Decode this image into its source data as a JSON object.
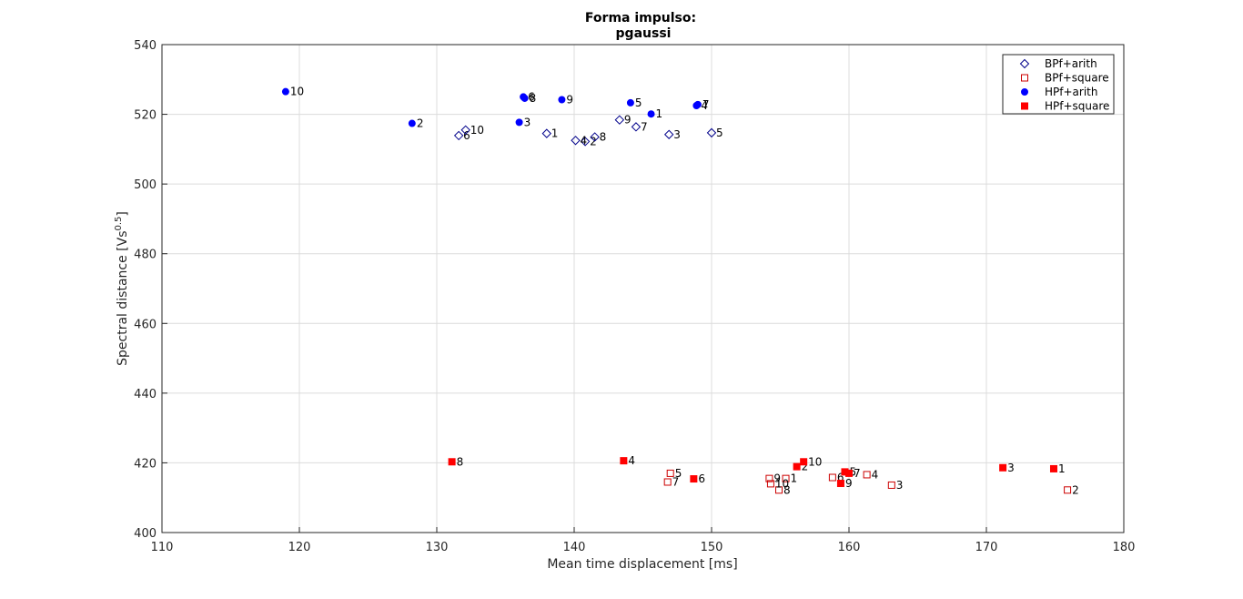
{
  "chart_data": {
    "type": "scatter",
    "title": [
      "Forma impulso:",
      "pgaussi"
    ],
    "xlabel": "Mean time displacement [ms]",
    "ylabel": "Spectral distance [Vs",
    "ylabel_sup": "0.5",
    "ylabel_end": "]",
    "xlim": [
      110,
      180
    ],
    "ylim": [
      400,
      540
    ],
    "xticks": [
      110,
      120,
      130,
      140,
      150,
      160,
      170,
      180
    ],
    "yticks": [
      400,
      420,
      440,
      460,
      480,
      500,
      520,
      540
    ],
    "grid": true,
    "legend_position": "top-right",
    "series": [
      {
        "name": "BPf+arith",
        "marker": "diamond",
        "color": "#00008B",
        "filled": false,
        "points": [
          {
            "x": 138.0,
            "y": 514.5,
            "label": "1"
          },
          {
            "x": 140.8,
            "y": 512.2,
            "label": "2"
          },
          {
            "x": 146.9,
            "y": 514.2,
            "label": "3"
          },
          {
            "x": 140.1,
            "y": 512.5,
            "label": "4"
          },
          {
            "x": 150.0,
            "y": 514.7,
            "label": "5"
          },
          {
            "x": 131.6,
            "y": 513.9,
            "label": "6"
          },
          {
            "x": 144.5,
            "y": 516.4,
            "label": "7"
          },
          {
            "x": 141.5,
            "y": 513.5,
            "label": "8"
          },
          {
            "x": 143.3,
            "y": 518.4,
            "label": "9"
          },
          {
            "x": 132.1,
            "y": 515.5,
            "label": "10"
          }
        ]
      },
      {
        "name": "BPf+square",
        "marker": "square",
        "color": "#CC0000",
        "filled": false,
        "points": [
          {
            "x": 155.4,
            "y": 415.5,
            "label": "1"
          },
          {
            "x": 175.9,
            "y": 412.2,
            "label": "2"
          },
          {
            "x": 163.1,
            "y": 413.6,
            "label": "3"
          },
          {
            "x": 161.3,
            "y": 416.6,
            "label": "4"
          },
          {
            "x": 147.0,
            "y": 417.0,
            "label": "5"
          },
          {
            "x": 158.8,
            "y": 415.8,
            "label": "6"
          },
          {
            "x": 146.8,
            "y": 414.5,
            "label": "7"
          },
          {
            "x": 154.9,
            "y": 412.2,
            "label": "8"
          },
          {
            "x": 154.2,
            "y": 415.5,
            "label": "9"
          },
          {
            "x": 154.3,
            "y": 414.0,
            "label": "10"
          }
        ]
      },
      {
        "name": "HPf+arith",
        "marker": "circle",
        "color": "#0000FF",
        "filled": true,
        "points": [
          {
            "x": 145.6,
            "y": 520.1,
            "label": "1"
          },
          {
            "x": 128.2,
            "y": 517.4,
            "label": "2"
          },
          {
            "x": 136.0,
            "y": 517.7,
            "label": "3"
          },
          {
            "x": 148.9,
            "y": 522.5,
            "label": "4"
          },
          {
            "x": 144.1,
            "y": 523.3,
            "label": "5"
          },
          {
            "x": 136.3,
            "y": 525.0,
            "label": "6"
          },
          {
            "x": 149.0,
            "y": 522.8,
            "label": "7"
          },
          {
            "x": 136.4,
            "y": 524.6,
            "label": "8"
          },
          {
            "x": 139.1,
            "y": 524.2,
            "label": "9"
          },
          {
            "x": 119.0,
            "y": 526.5,
            "label": "10"
          }
        ]
      },
      {
        "name": "HPf+square",
        "marker": "square",
        "color": "#FF0000",
        "filled": true,
        "points": [
          {
            "x": 174.9,
            "y": 418.3,
            "label": "1"
          },
          {
            "x": 156.2,
            "y": 418.9,
            "label": "2"
          },
          {
            "x": 171.2,
            "y": 418.6,
            "label": "3"
          },
          {
            "x": 143.6,
            "y": 420.6,
            "label": "4"
          },
          {
            "x": 159.7,
            "y": 417.4,
            "label": "5"
          },
          {
            "x": 148.7,
            "y": 415.4,
            "label": "6"
          },
          {
            "x": 160.0,
            "y": 417.0,
            "label": "7"
          },
          {
            "x": 131.1,
            "y": 420.3,
            "label": "8"
          },
          {
            "x": 159.4,
            "y": 414.1,
            "label": "9"
          },
          {
            "x": 156.7,
            "y": 420.3,
            "label": "10"
          }
        ]
      }
    ]
  }
}
